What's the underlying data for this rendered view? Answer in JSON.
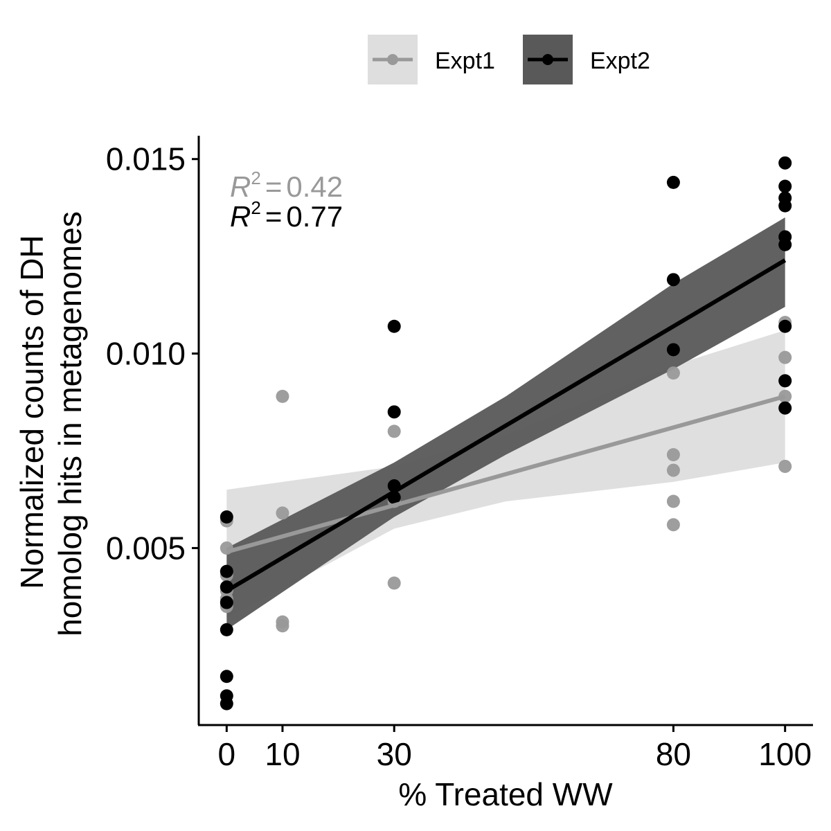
{
  "chart_data": {
    "type": "scatter",
    "xlabel": "% Treated WW",
    "ylabel_lines": [
      "Normalized counts of DH",
      "homolog hits in metagenomes"
    ],
    "x_ticks": [
      0,
      10,
      30,
      80,
      100
    ],
    "y_ticks": [
      0.005,
      0.01,
      0.015
    ],
    "y_tick_labels": [
      "0.005",
      "0.010",
      "0.015"
    ],
    "xlim": [
      -5,
      105
    ],
    "ylim": [
      0.00045,
      0.0156
    ],
    "grid": false,
    "legend_position": "top",
    "series": [
      {
        "name": "Expt1",
        "color": "#999999",
        "band_color": "#d9d9d9",
        "band_opacity": 0.85,
        "r2_label": "R² = 0.42",
        "r2_value": "0.42",
        "fit": {
          "intercept": 0.0049,
          "slope": 4e-05
        },
        "band": [
          {
            "x": 0,
            "lo": 0.0032,
            "hi": 0.0065
          },
          {
            "x": 30,
            "lo": 0.0055,
            "hi": 0.0071
          },
          {
            "x": 50,
            "lo": 0.0062,
            "hi": 0.0079
          },
          {
            "x": 80,
            "lo": 0.0067,
            "hi": 0.0097
          },
          {
            "x": 100,
            "lo": 0.0072,
            "hi": 0.0106
          }
        ],
        "points": [
          {
            "x": 0,
            "y": 0.0057
          },
          {
            "x": 0,
            "y": 0.005
          },
          {
            "x": 0,
            "y": 0.0043
          },
          {
            "x": 0,
            "y": 0.0039
          },
          {
            "x": 0,
            "y": 0.0037
          },
          {
            "x": 0,
            "y": 0.0035
          },
          {
            "x": 10,
            "y": 0.0089
          },
          {
            "x": 10,
            "y": 0.0059
          },
          {
            "x": 10,
            "y": 0.0031
          },
          {
            "x": 10,
            "y": 0.003
          },
          {
            "x": 30,
            "y": 0.008
          },
          {
            "x": 30,
            "y": 0.0066
          },
          {
            "x": 30,
            "y": 0.0062
          },
          {
            "x": 30,
            "y": 0.0041
          },
          {
            "x": 80,
            "y": 0.0101
          },
          {
            "x": 80,
            "y": 0.0095
          },
          {
            "x": 80,
            "y": 0.0074
          },
          {
            "x": 80,
            "y": 0.007
          },
          {
            "x": 80,
            "y": 0.0062
          },
          {
            "x": 80,
            "y": 0.0056
          },
          {
            "x": 100,
            "y": 0.0108
          },
          {
            "x": 100,
            "y": 0.0099
          },
          {
            "x": 100,
            "y": 0.0093
          },
          {
            "x": 100,
            "y": 0.0089
          },
          {
            "x": 100,
            "y": 0.0071
          }
        ]
      },
      {
        "name": "Expt2",
        "color": "#000000",
        "band_color": "#595959",
        "band_opacity": 0.95,
        "r2_label": "R² = 0.77",
        "r2_value": "0.77",
        "fit": {
          "intercept": 0.0039,
          "slope": 8.5e-05
        },
        "band": [
          {
            "x": 0,
            "lo": 0.0029,
            "hi": 0.005
          },
          {
            "x": 30,
            "lo": 0.0058,
            "hi": 0.0072
          },
          {
            "x": 50,
            "lo": 0.0074,
            "hi": 0.0089
          },
          {
            "x": 80,
            "lo": 0.0096,
            "hi": 0.0118
          },
          {
            "x": 100,
            "lo": 0.0112,
            "hi": 0.0135
          }
        ],
        "points": [
          {
            "x": 0,
            "y": 0.0058
          },
          {
            "x": 0,
            "y": 0.0044
          },
          {
            "x": 0,
            "y": 0.004
          },
          {
            "x": 0,
            "y": 0.0036
          },
          {
            "x": 0,
            "y": 0.0029
          },
          {
            "x": 0,
            "y": 0.0017
          },
          {
            "x": 0,
            "y": 0.0012
          },
          {
            "x": 0,
            "y": 0.001
          },
          {
            "x": 30,
            "y": 0.0107
          },
          {
            "x": 30,
            "y": 0.0085
          },
          {
            "x": 30,
            "y": 0.0066
          },
          {
            "x": 30,
            "y": 0.0063
          },
          {
            "x": 80,
            "y": 0.0144
          },
          {
            "x": 80,
            "y": 0.0119
          },
          {
            "x": 80,
            "y": 0.0101
          },
          {
            "x": 100,
            "y": 0.0149
          },
          {
            "x": 100,
            "y": 0.0143
          },
          {
            "x": 100,
            "y": 0.014
          },
          {
            "x": 100,
            "y": 0.0138
          },
          {
            "x": 100,
            "y": 0.013
          },
          {
            "x": 100,
            "y": 0.0128
          },
          {
            "x": 100,
            "y": 0.0107
          },
          {
            "x": 100,
            "y": 0.0093
          },
          {
            "x": 100,
            "y": 0.0086
          }
        ]
      }
    ]
  }
}
